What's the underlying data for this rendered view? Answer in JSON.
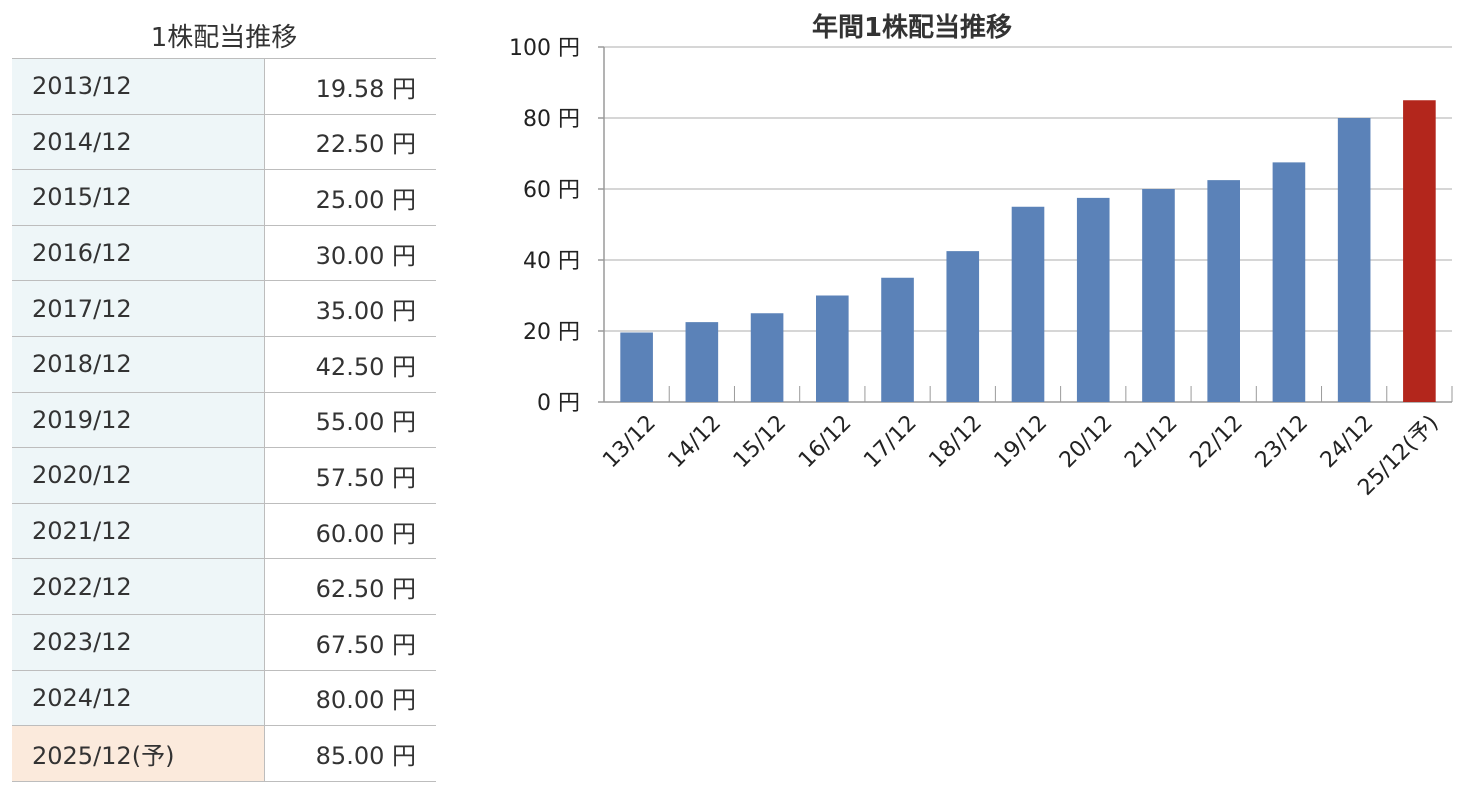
{
  "table": {
    "title": "1株配当推移",
    "rows": [
      {
        "period": "2013/12",
        "amount": "19.58 円"
      },
      {
        "period": "2014/12",
        "amount": "22.50 円"
      },
      {
        "period": "2015/12",
        "amount": "25.00 円"
      },
      {
        "period": "2016/12",
        "amount": "30.00 円"
      },
      {
        "period": "2017/12",
        "amount": "35.00 円"
      },
      {
        "period": "2018/12",
        "amount": "42.50 円"
      },
      {
        "period": "2019/12",
        "amount": "55.00 円"
      },
      {
        "period": "2020/12",
        "amount": "57.50 円"
      },
      {
        "period": "2021/12",
        "amount": "60.00 円"
      },
      {
        "period": "2022/12",
        "amount": "62.50 円"
      },
      {
        "period": "2023/12",
        "amount": "67.50 円"
      },
      {
        "period": "2024/12",
        "amount": "80.00 円"
      },
      {
        "period": "2025/12(予)",
        "amount": "85.00 円",
        "forecast": true
      }
    ]
  },
  "chart_data": {
    "type": "bar",
    "title": "年間1株配当推移",
    "categories": [
      "13/12",
      "14/12",
      "15/12",
      "16/12",
      "17/12",
      "18/12",
      "19/12",
      "20/12",
      "21/12",
      "22/12",
      "23/12",
      "24/12",
      "25/12(予)"
    ],
    "values": [
      19.58,
      22.5,
      25.0,
      30.0,
      35.0,
      42.5,
      55.0,
      57.5,
      60.0,
      62.5,
      67.5,
      80.0,
      85.0
    ],
    "forecast_index": 12,
    "ylim": [
      0,
      100
    ],
    "yticks": [
      0,
      20,
      40,
      60,
      80,
      100
    ],
    "ytick_suffix": " 円",
    "grid": true,
    "colors": {
      "actual": "#5b82b8",
      "forecast": "#b3261c",
      "grid": "#c8c8c8",
      "axis": "#9a9a9a"
    }
  }
}
